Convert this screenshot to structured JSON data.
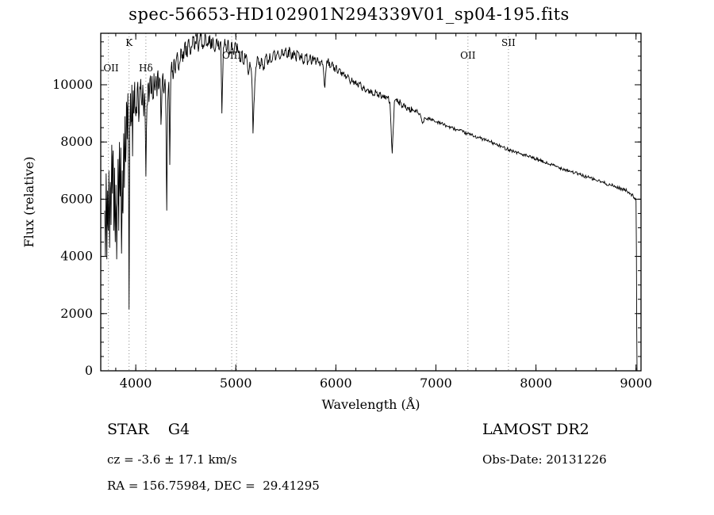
{
  "title": "spec-56653-HD102901N294339V01_sp04-195.fits",
  "footer": {
    "star_class": "STAR    G4",
    "cz": "cz = -3.6 ± 17.1 km/s",
    "radec": "RA = 156.75984, DEC =  29.41295",
    "survey": "LAMOST DR2",
    "obs_date": "Obs-Date: 20131226"
  },
  "chart_data": {
    "type": "line",
    "title": "spec-56653-HD102901N294339V01_sp04-195.fits",
    "xlabel": "Wavelength (Å)",
    "ylabel": "Flux (relative)",
    "xlim": [
      3650,
      9050
    ],
    "ylim": [
      0,
      11800
    ],
    "xticks": [
      4000,
      5000,
      6000,
      7000,
      8000,
      9000
    ],
    "yticks": [
      0,
      2000,
      4000,
      6000,
      8000,
      10000
    ],
    "x_minor_step": 200,
    "y_minor_step": 500,
    "grid": false,
    "legend": "none",
    "line_color": "#000000",
    "marker_line_color": "#8a8a8a",
    "markers": [
      {
        "label": "OII",
        "wavelengths": [
          3727
        ],
        "row": 2
      },
      {
        "label": "K",
        "wavelengths": [
          3933
        ],
        "row": 0
      },
      {
        "label": "Hδ",
        "wavelengths": [
          4101
        ],
        "row": 2
      },
      {
        "label": "OIII",
        "wavelengths": [
          4959,
          5007
        ],
        "row": 1
      },
      {
        "label": "OII",
        "wavelengths": [
          7320
        ],
        "row": 1
      },
      {
        "label": "SII",
        "wavelengths": [
          7725
        ],
        "row": 0
      }
    ],
    "noise": [
      {
        "from": 3650,
        "to": 4000,
        "amp": 700
      },
      {
        "from": 4000,
        "to": 4400,
        "amp": 420
      },
      {
        "from": 4400,
        "to": 5200,
        "amp": 260
      },
      {
        "from": 5200,
        "to": 6000,
        "amp": 180
      },
      {
        "from": 6000,
        "to": 6800,
        "amp": 110
      },
      {
        "from": 6800,
        "to": 9010,
        "amp": 60
      }
    ],
    "points": [
      [
        3690,
        5600
      ],
      [
        3697,
        4000
      ],
      [
        3704,
        6900
      ],
      [
        3711,
        3900
      ],
      [
        3718,
        6300
      ],
      [
        3725,
        4900
      ],
      [
        3732,
        7000
      ],
      [
        3739,
        4300
      ],
      [
        3746,
        6600
      ],
      [
        3753,
        5100
      ],
      [
        3760,
        7900
      ],
      [
        3767,
        6200
      ],
      [
        3774,
        7700
      ],
      [
        3781,
        4900
      ],
      [
        3788,
        7100
      ],
      [
        3795,
        4500
      ],
      [
        3802,
        6500
      ],
      [
        3809,
        3900
      ],
      [
        3816,
        5700
      ],
      [
        3823,
        7400
      ],
      [
        3830,
        4900
      ],
      [
        3837,
        8000
      ],
      [
        3844,
        6100
      ],
      [
        3851,
        7800
      ],
      [
        3858,
        4100
      ],
      [
        3865,
        7000
      ],
      [
        3872,
        5500
      ],
      [
        3879,
        8300
      ],
      [
        3886,
        6400
      ],
      [
        3893,
        8900
      ],
      [
        3900,
        7300
      ],
      [
        3907,
        9400
      ],
      [
        3914,
        8100
      ],
      [
        3921,
        9700
      ],
      [
        3928,
        6400
      ],
      [
        3933,
        2150
      ],
      [
        3940,
        8500
      ],
      [
        3947,
        9700
      ],
      [
        3954,
        8700
      ],
      [
        3961,
        10000
      ],
      [
        3968,
        7500
      ],
      [
        3975,
        9800
      ],
      [
        3982,
        9000
      ],
      [
        3989,
        10100
      ],
      [
        3996,
        9100
      ],
      [
        4010,
        9000
      ],
      [
        4020,
        10100
      ],
      [
        4030,
        8700
      ],
      [
        4040,
        9900
      ],
      [
        4050,
        10200
      ],
      [
        4060,
        9300
      ],
      [
        4070,
        10000
      ],
      [
        4080,
        8900
      ],
      [
        4090,
        9700
      ],
      [
        4101,
        6800
      ],
      [
        4112,
        9300
      ],
      [
        4122,
        10000
      ],
      [
        4132,
        9400
      ],
      [
        4142,
        10200
      ],
      [
        4152,
        9700
      ],
      [
        4162,
        10300
      ],
      [
        4172,
        9500
      ],
      [
        4182,
        10400
      ],
      [
        4192,
        9800
      ],
      [
        4202,
        10300
      ],
      [
        4212,
        9600
      ],
      [
        4222,
        10500
      ],
      [
        4232,
        9900
      ],
      [
        4242,
        10200
      ],
      [
        4252,
        8600
      ],
      [
        4262,
        9800
      ],
      [
        4272,
        10400
      ],
      [
        4282,
        9700
      ],
      [
        4292,
        10200
      ],
      [
        4302,
        8900
      ],
      [
        4310,
        5600
      ],
      [
        4320,
        9400
      ],
      [
        4330,
        10100
      ],
      [
        4340,
        7200
      ],
      [
        4350,
        10300
      ],
      [
        4360,
        10800
      ],
      [
        4372,
        10200
      ],
      [
        4384,
        10900
      ],
      [
        4396,
        10400
      ],
      [
        4410,
        11000
      ],
      [
        4430,
        10500
      ],
      [
        4450,
        11250
      ],
      [
        4470,
        10800
      ],
      [
        4490,
        11450
      ],
      [
        4510,
        11000
      ],
      [
        4530,
        11600
      ],
      [
        4550,
        11100
      ],
      [
        4570,
        11700
      ],
      [
        4590,
        11250
      ],
      [
        4610,
        11750
      ],
      [
        4630,
        11300
      ],
      [
        4650,
        11700
      ],
      [
        4670,
        11250
      ],
      [
        4690,
        11750
      ],
      [
        4710,
        11400
      ],
      [
        4730,
        11700
      ],
      [
        4750,
        11250
      ],
      [
        4770,
        11650
      ],
      [
        4790,
        11150
      ],
      [
        4810,
        11600
      ],
      [
        4830,
        11250
      ],
      [
        4850,
        11500
      ],
      [
        4861,
        9000
      ],
      [
        4875,
        11300
      ],
      [
        4890,
        11600
      ],
      [
        4905,
        11200
      ],
      [
        4920,
        11550
      ],
      [
        4940,
        11150
      ],
      [
        4960,
        11500
      ],
      [
        4980,
        11050
      ],
      [
        5000,
        11400
      ],
      [
        5020,
        11200
      ],
      [
        5040,
        10800
      ],
      [
        5060,
        11150
      ],
      [
        5080,
        10700
      ],
      [
        5100,
        11000
      ],
      [
        5120,
        10500
      ],
      [
        5140,
        10800
      ],
      [
        5160,
        10200
      ],
      [
        5172,
        8300
      ],
      [
        5186,
        9600
      ],
      [
        5200,
        10600
      ],
      [
        5220,
        10950
      ],
      [
        5240,
        10550
      ],
      [
        5260,
        10900
      ],
      [
        5280,
        10600
      ],
      [
        5300,
        11000
      ],
      [
        5320,
        10700
      ],
      [
        5340,
        11100
      ],
      [
        5360,
        10800
      ],
      [
        5380,
        11150
      ],
      [
        5400,
        10900
      ],
      [
        5420,
        11200
      ],
      [
        5440,
        10900
      ],
      [
        5460,
        11250
      ],
      [
        5480,
        11000
      ],
      [
        5500,
        11300
      ],
      [
        5520,
        11000
      ],
      [
        5540,
        11250
      ],
      [
        5560,
        10950
      ],
      [
        5580,
        11200
      ],
      [
        5600,
        10900
      ],
      [
        5620,
        11150
      ],
      [
        5640,
        10850
      ],
      [
        5660,
        11100
      ],
      [
        5680,
        10800
      ],
      [
        5700,
        11050
      ],
      [
        5720,
        10800
      ],
      [
        5740,
        11000
      ],
      [
        5760,
        10750
      ],
      [
        5780,
        10950
      ],
      [
        5800,
        10700
      ],
      [
        5820,
        10900
      ],
      [
        5840,
        10650
      ],
      [
        5860,
        10850
      ],
      [
        5890,
        9900
      ],
      [
        5905,
        10650
      ],
      [
        5920,
        10850
      ],
      [
        5940,
        10600
      ],
      [
        5960,
        10750
      ],
      [
        5980,
        10500
      ],
      [
        6000,
        10650
      ],
      [
        6020,
        10400
      ],
      [
        6040,
        10550
      ],
      [
        6060,
        10300
      ],
      [
        6080,
        10450
      ],
      [
        6100,
        10200
      ],
      [
        6120,
        10350
      ],
      [
        6140,
        10100
      ],
      [
        6160,
        10250
      ],
      [
        6180,
        10000
      ],
      [
        6200,
        10150
      ],
      [
        6220,
        9950
      ],
      [
        6240,
        10050
      ],
      [
        6260,
        9850
      ],
      [
        6280,
        9950
      ],
      [
        6300,
        9750
      ],
      [
        6320,
        9850
      ],
      [
        6340,
        9700
      ],
      [
        6360,
        9800
      ],
      [
        6380,
        9650
      ],
      [
        6400,
        9750
      ],
      [
        6420,
        9600
      ],
      [
        6440,
        9700
      ],
      [
        6460,
        9550
      ],
      [
        6480,
        9650
      ],
      [
        6500,
        9500
      ],
      [
        6520,
        9550
      ],
      [
        6540,
        9400
      ],
      [
        6563,
        7600
      ],
      [
        6585,
        9400
      ],
      [
        6605,
        9500
      ],
      [
        6625,
        9350
      ],
      [
        6645,
        9400
      ],
      [
        6665,
        9250
      ],
      [
        6685,
        9300
      ],
      [
        6705,
        9150
      ],
      [
        6725,
        9200
      ],
      [
        6745,
        9100
      ],
      [
        6765,
        9150
      ],
      [
        6785,
        9050
      ],
      [
        6805,
        9100
      ],
      [
        6825,
        9000
      ],
      [
        6845,
        8950
      ],
      [
        6867,
        8650
      ],
      [
        6890,
        8850
      ],
      [
        6910,
        8800
      ],
      [
        6930,
        8850
      ],
      [
        6950,
        8750
      ],
      [
        6970,
        8800
      ],
      [
        6990,
        8700
      ],
      [
        7030,
        8700
      ],
      [
        7070,
        8620
      ],
      [
        7110,
        8560
      ],
      [
        7150,
        8500
      ],
      [
        7190,
        8450
      ],
      [
        7230,
        8400
      ],
      [
        7270,
        8350
      ],
      [
        7310,
        8300
      ],
      [
        7350,
        8250
      ],
      [
        7390,
        8200
      ],
      [
        7430,
        8150
      ],
      [
        7470,
        8100
      ],
      [
        7510,
        8050
      ],
      [
        7550,
        8000
      ],
      [
        7590,
        7930
      ],
      [
        7630,
        7870
      ],
      [
        7670,
        7810
      ],
      [
        7710,
        7760
      ],
      [
        7750,
        7710
      ],
      [
        7790,
        7660
      ],
      [
        7830,
        7610
      ],
      [
        7870,
        7560
      ],
      [
        7910,
        7510
      ],
      [
        7950,
        7460
      ],
      [
        7990,
        7410
      ],
      [
        8040,
        7350
      ],
      [
        8090,
        7280
      ],
      [
        8140,
        7220
      ],
      [
        8190,
        7160
      ],
      [
        8240,
        7100
      ],
      [
        8290,
        7040
      ],
      [
        8340,
        6980
      ],
      [
        8390,
        6920
      ],
      [
        8440,
        6860
      ],
      [
        8490,
        6800
      ],
      [
        8540,
        6740
      ],
      [
        8590,
        6680
      ],
      [
        8640,
        6620
      ],
      [
        8690,
        6560
      ],
      [
        8740,
        6500
      ],
      [
        8790,
        6440
      ],
      [
        8840,
        6380
      ],
      [
        8890,
        6320
      ],
      [
        8930,
        6250
      ],
      [
        8960,
        6150
      ],
      [
        8985,
        6050
      ],
      [
        9000,
        5980
      ],
      [
        9004,
        4200
      ],
      [
        9007,
        1500
      ],
      [
        9010,
        0
      ]
    ]
  }
}
